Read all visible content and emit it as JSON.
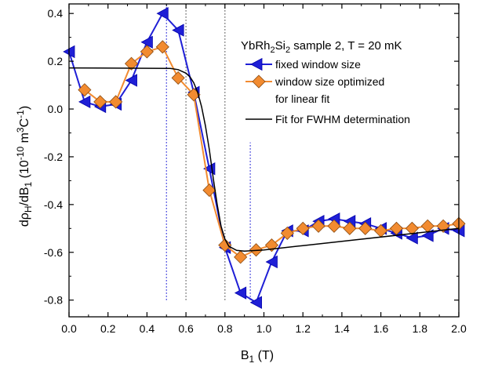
{
  "chart_data": {
    "type": "line",
    "xlabel": {
      "main": "B",
      "sub": "1",
      "tail": " (T)"
    },
    "ylabel": {
      "a": "dρ",
      "a_sub": "H",
      "b": "/dB",
      "b_sub": "1",
      "c": " (10",
      "c_sup": "-10",
      "d": " m",
      "d_sup": "3",
      "e": "C",
      "e_sup": "-1",
      "f": ")"
    },
    "xlim": [
      0.0,
      2.0
    ],
    "ylim": [
      -0.87,
      0.44
    ],
    "x_ticks": [
      0.0,
      0.2,
      0.4,
      0.6,
      0.8,
      1.0,
      1.2,
      1.4,
      1.6,
      1.8,
      2.0
    ],
    "x_tick_labels": [
      "0.0",
      "0.2",
      "0.4",
      "0.6",
      "0.8",
      "1.0",
      "1.2",
      "1.4",
      "1.6",
      "1.8",
      "2.0"
    ],
    "y_ticks": [
      0.4,
      0.2,
      0.0,
      -0.2,
      -0.4,
      -0.6,
      -0.8
    ],
    "y_tick_labels": [
      "0.4",
      "0.2",
      "0.0",
      "-0.2",
      "-0.4",
      "-0.6",
      "-0.8"
    ],
    "annotation": {
      "pre": "YbRh",
      "sub1": "2",
      "mid": "Si",
      "sub2": "2",
      "post": " sample 2, T = 20 mK"
    },
    "legend_position": "top-right",
    "series": [
      {
        "name": "fixed window size",
        "color": "#1f1fd6",
        "marker": "triangle-left",
        "x": [
          0.0,
          0.08,
          0.16,
          0.24,
          0.32,
          0.4,
          0.48,
          0.56,
          0.64,
          0.72,
          0.8,
          0.88,
          0.96,
          1.04,
          1.12,
          1.2,
          1.28,
          1.36,
          1.44,
          1.52,
          1.6,
          1.68,
          1.76,
          1.84,
          1.92,
          2.0
        ],
        "y": [
          0.24,
          0.03,
          0.01,
          0.02,
          0.12,
          0.28,
          0.4,
          0.33,
          0.07,
          -0.25,
          -0.58,
          -0.77,
          -0.81,
          -0.64,
          -0.51,
          -0.51,
          -0.47,
          -0.46,
          -0.47,
          -0.48,
          -0.5,
          -0.52,
          -0.54,
          -0.53,
          -0.5,
          -0.51
        ]
      },
      {
        "name": "window size optimized",
        "name_line2": "for linear fit",
        "color": "#f28b30",
        "marker": "diamond",
        "x": [
          0.08,
          0.16,
          0.24,
          0.32,
          0.4,
          0.48,
          0.56,
          0.64,
          0.72,
          0.8,
          0.88,
          0.96,
          1.04,
          1.12,
          1.2,
          1.28,
          1.36,
          1.44,
          1.52,
          1.6,
          1.68,
          1.76,
          1.84,
          1.92,
          2.0
        ],
        "y": [
          0.08,
          0.03,
          0.03,
          0.19,
          0.24,
          0.26,
          0.13,
          0.06,
          -0.34,
          -0.57,
          -0.62,
          -0.59,
          -0.57,
          -0.52,
          -0.5,
          -0.49,
          -0.49,
          -0.5,
          -0.5,
          -0.51,
          -0.5,
          -0.5,
          -0.49,
          -0.49,
          -0.48
        ]
      },
      {
        "name": "Fit for FWHM determination",
        "color": "#000000",
        "marker": "none",
        "x": [
          0.0,
          0.52,
          0.56,
          0.6,
          0.62,
          0.64,
          0.66,
          0.68,
          0.7,
          0.72,
          0.74,
          0.76,
          0.78,
          0.8,
          0.82,
          0.86,
          0.9,
          1.0,
          1.2,
          1.5,
          2.0
        ],
        "y": [
          0.172,
          0.17,
          0.165,
          0.15,
          0.135,
          0.11,
          0.07,
          0.01,
          -0.07,
          -0.17,
          -0.29,
          -0.4,
          -0.49,
          -0.545,
          -0.575,
          -0.592,
          -0.595,
          -0.59,
          -0.572,
          -0.545,
          -0.5
        ]
      }
    ],
    "vertical_lines": [
      {
        "x": 0.5,
        "y_from": -0.8,
        "y_to": 0.44,
        "color": "#1f1fd6"
      },
      {
        "x": 0.6,
        "y_from": -0.8,
        "y_to": 0.44,
        "color": "#555555"
      },
      {
        "x": 0.8,
        "y_from": -0.8,
        "y_to": 0.44,
        "color": "#555555"
      },
      {
        "x": 0.93,
        "y_from": -0.8,
        "y_to": -0.14,
        "color": "#1f1fd6"
      }
    ]
  }
}
